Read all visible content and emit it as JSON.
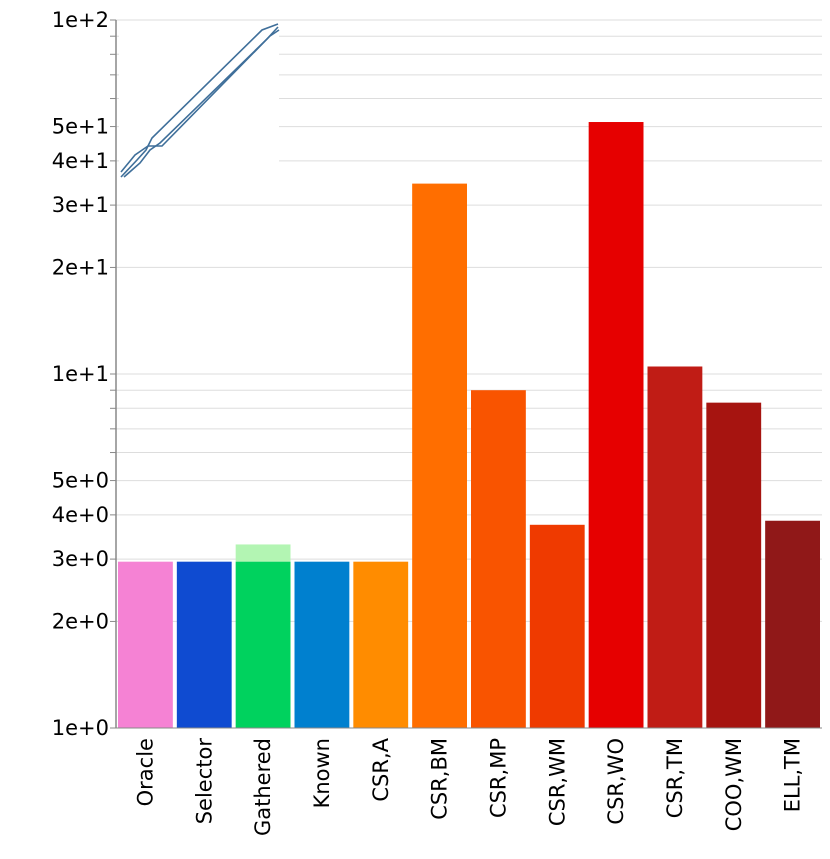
{
  "chart_data": {
    "type": "bar",
    "y_scale": "log",
    "ylim": [
      1,
      100
    ],
    "grid": true,
    "y_ticks": [
      {
        "value": 1,
        "label": "1e+0"
      },
      {
        "value": 2,
        "label": "2e+0"
      },
      {
        "value": 3,
        "label": "3e+0"
      },
      {
        "value": 4,
        "label": "4e+0"
      },
      {
        "value": 5,
        "label": "5e+0"
      },
      {
        "value": 10,
        "label": "1e+1"
      },
      {
        "value": 20,
        "label": "2e+1"
      },
      {
        "value": 30,
        "label": "3e+1"
      },
      {
        "value": 40,
        "label": "4e+1"
      },
      {
        "value": 50,
        "label": "5e+1"
      },
      {
        "value": 100,
        "label": "1e+2"
      }
    ],
    "categories": [
      "Oracle",
      "Selector",
      "Gathered",
      "Known",
      "CSR,A",
      "CSR,BM",
      "CSR,MP",
      "CSR,WM",
      "CSR,WO",
      "CSR,TM",
      "COO,WM",
      "ELL,TM"
    ],
    "values": [
      2.95,
      2.95,
      2.95,
      2.95,
      2.95,
      34.5,
      9.0,
      3.75,
      51.5,
      10.5,
      8.3,
      3.85
    ],
    "gathered_extra_top": 3.3,
    "colors": [
      "#f582d4",
      "#0f4bd1",
      "#00d25e",
      "#0080cf",
      "#ff8c00",
      "#ff6e00",
      "#f95400",
      "#ef3a00",
      "#e60000",
      "#c01c15",
      "#a61410",
      "#901818"
    ],
    "gathered_extra_color": "#b3f5b3",
    "inset": {
      "description_icon": "sparsity-pattern-thumbnail",
      "line_color": "#3f6f9a"
    }
  }
}
